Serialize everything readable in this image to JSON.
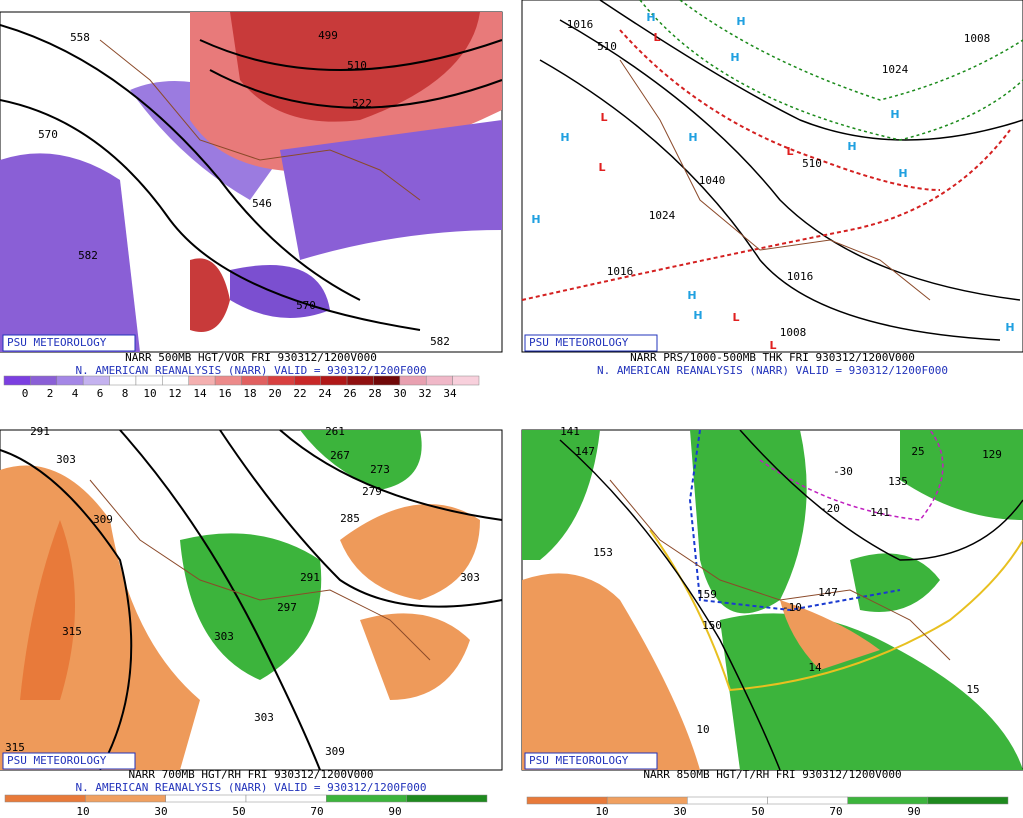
{
  "panels": [
    {
      "brand": "PSU METEOROLOGY",
      "caption": "NARR 500MB HGT/VOR FRI 930312/1200V000",
      "subcaption": "N. AMERICAN REANALYSIS (NARR) VALID = 930312/1200F000",
      "colorbar": [
        "0",
        "2",
        "4",
        "6",
        "8",
        "10",
        "12",
        "14",
        "16",
        "18",
        "20",
        "22",
        "24",
        "26",
        "28",
        "30",
        "32",
        "34"
      ],
      "contour_labels": [
        "558",
        "499",
        "510",
        "522",
        "570",
        "546",
        "582",
        "570",
        "582"
      ]
    },
    {
      "brand": "PSU METEOROLOGY",
      "caption": "NARR PRS/1000-500MB THK FRI 930312/1200V000",
      "subcaption": "N. AMERICAN REANALYSIS (NARR) VALID = 930312/1200F000",
      "contour_labels": [
        "1016",
        "510",
        "1024",
        "1008",
        "1040",
        "1024",
        "1016",
        "1016",
        "1008",
        "510"
      ],
      "centers": [
        "H",
        "H",
        "H",
        "H",
        "H",
        "H",
        "H",
        "H",
        "H",
        "H",
        "H",
        "H",
        "L",
        "L",
        "L",
        "L",
        "L",
        "L"
      ]
    },
    {
      "brand": "PSU METEOROLOGY",
      "caption": "NARR 700MB HGT/RH FRI 930312/1200V000",
      "subcaption": "N. AMERICAN REANALYSIS (NARR) VALID = 930312/1200F000",
      "colorbar": [
        "10",
        "30",
        "50",
        "70",
        "90"
      ],
      "contour_labels": [
        "291",
        "303",
        "261",
        "267",
        "273",
        "279",
        "285",
        "309",
        "291",
        "297",
        "303",
        "303",
        "315",
        "303",
        "309",
        "315"
      ]
    },
    {
      "brand": "PSU METEOROLOGY",
      "caption": "NARR 850MB HGT/T/RH FRI 930312/1200V000",
      "colorbar": [
        "10",
        "30",
        "50",
        "70",
        "90"
      ],
      "contour_labels": [
        "141",
        "147",
        "-30",
        "135",
        "-20",
        "141",
        "153",
        "159",
        "-10",
        "147",
        "150",
        "14",
        "15",
        "10",
        "129",
        "25"
      ]
    }
  ]
}
